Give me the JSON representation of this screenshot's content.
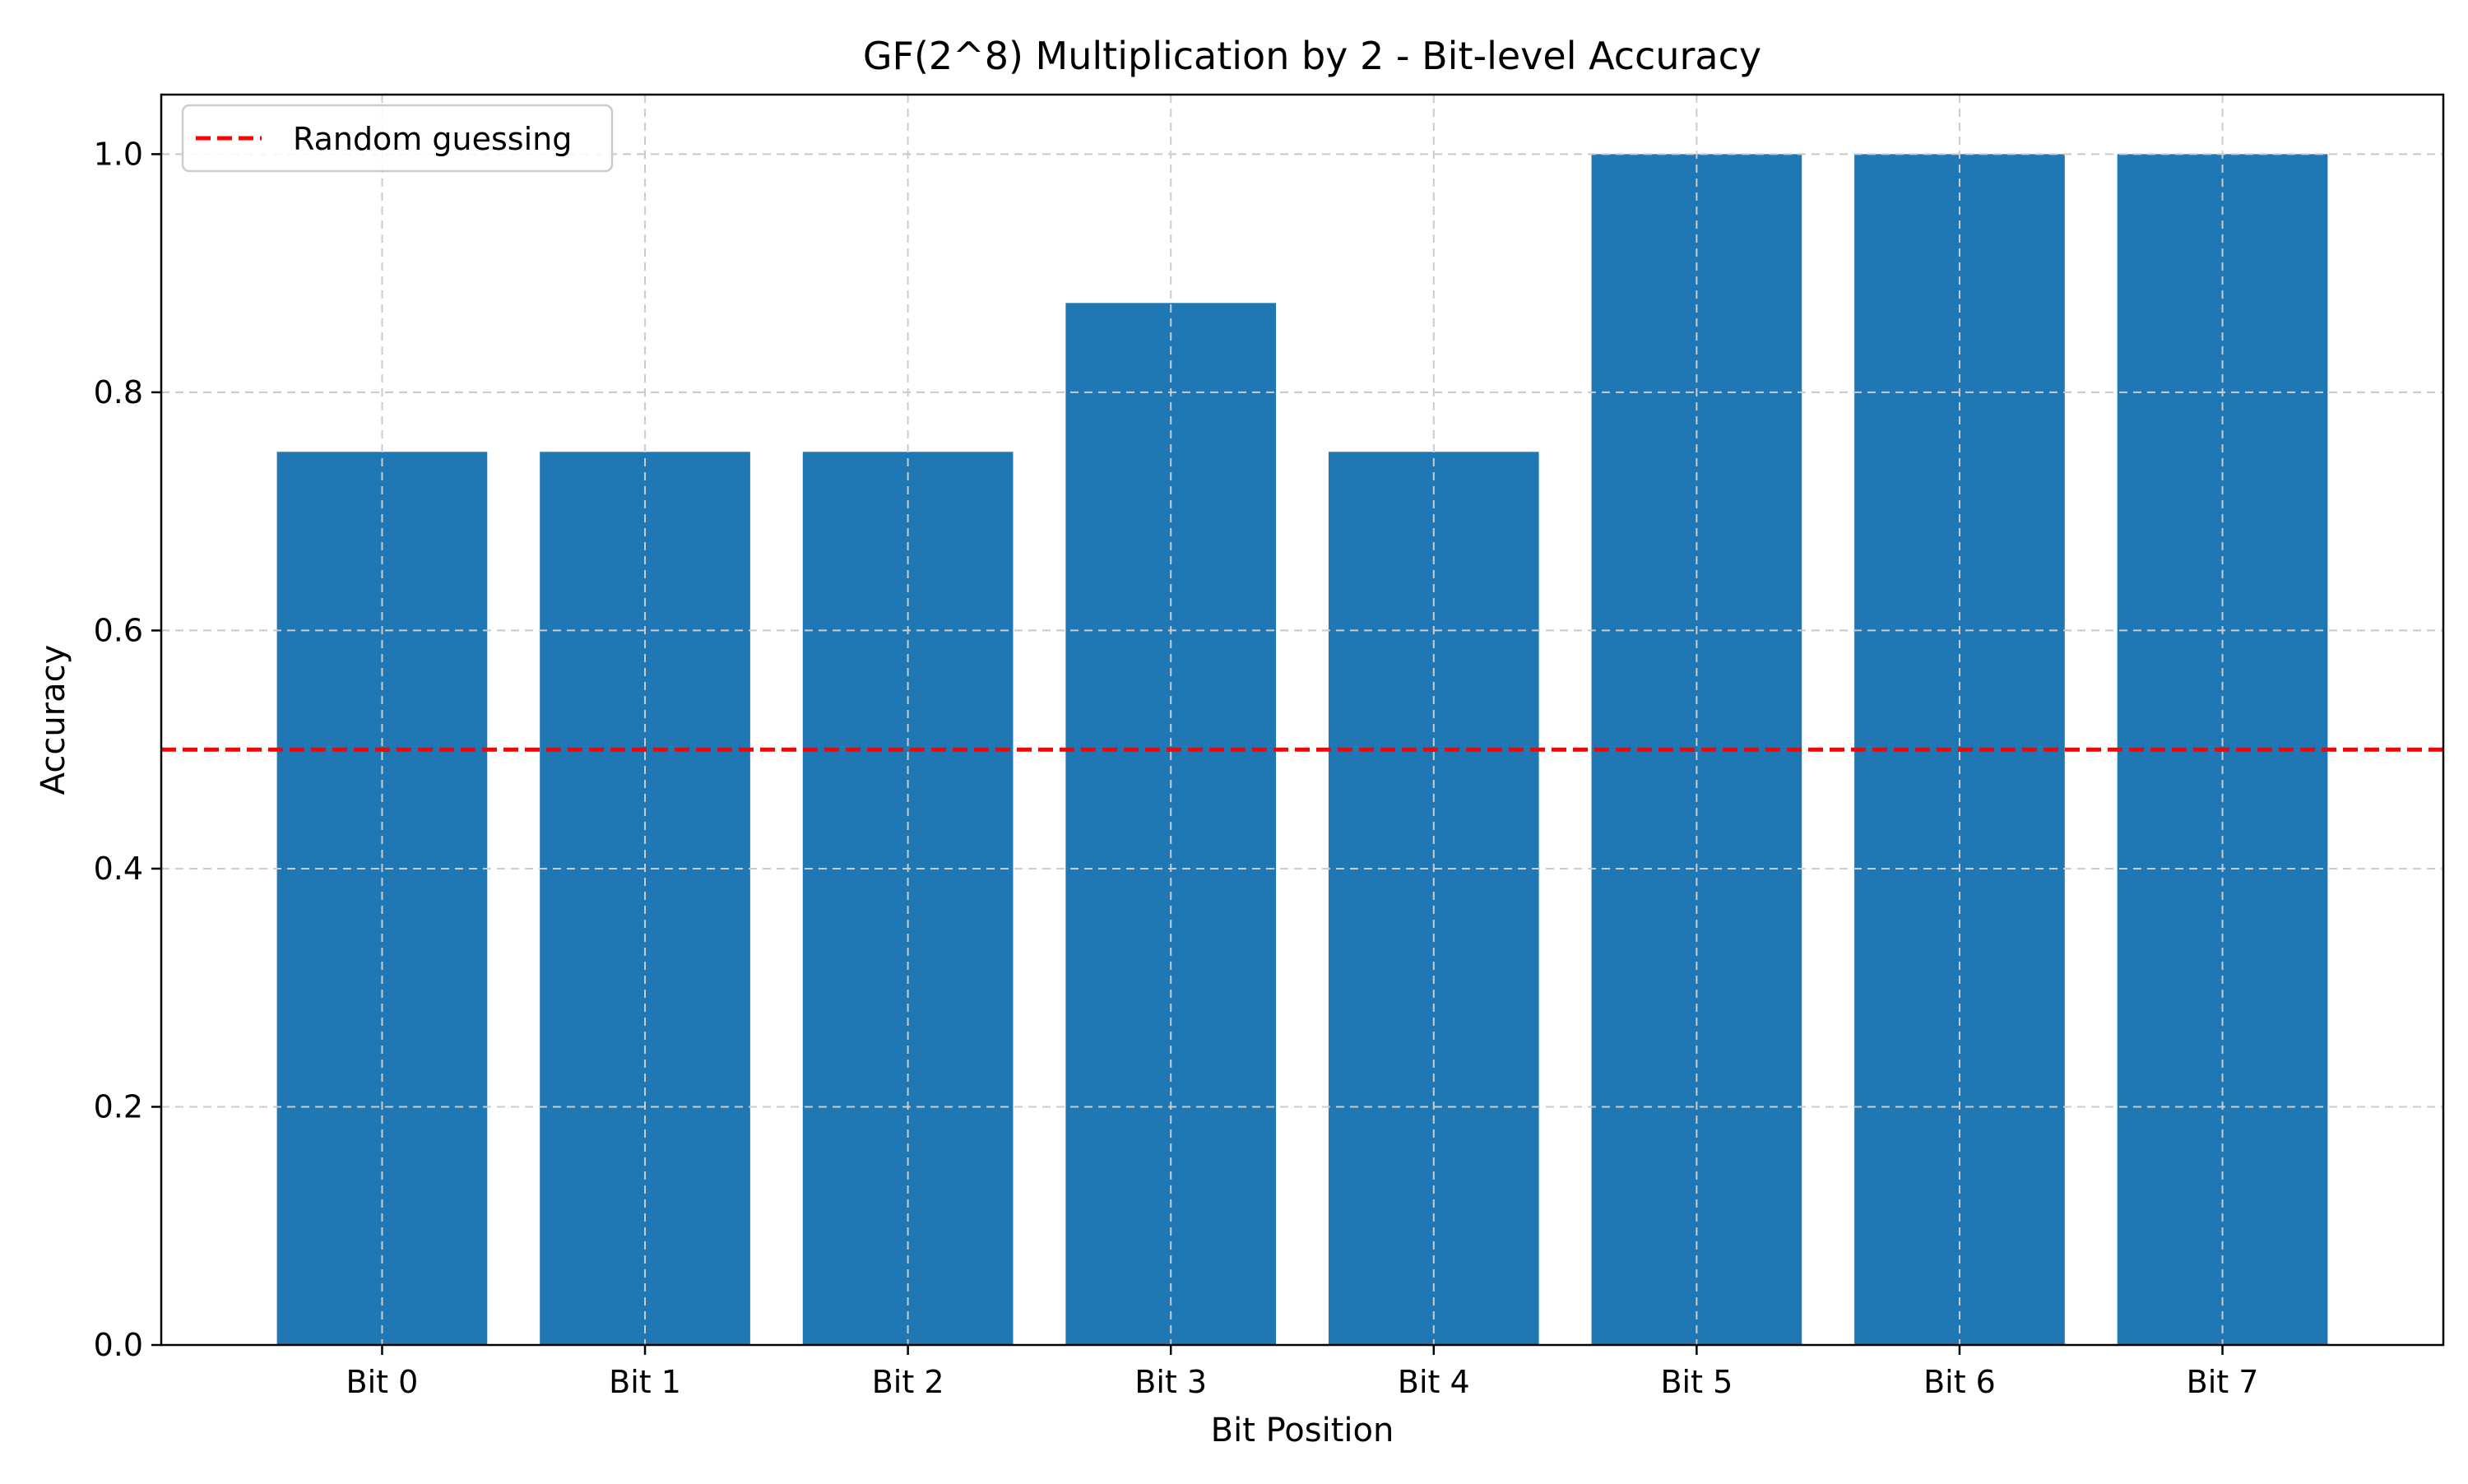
{
  "chart_data": {
    "type": "bar",
    "title": "GF(2^8) Multiplication by 2 - Bit-level Accuracy",
    "xlabel": "Bit Position",
    "ylabel": "Accuracy",
    "categories": [
      "Bit 0",
      "Bit 1",
      "Bit 2",
      "Bit 3",
      "Bit 4",
      "Bit 5",
      "Bit 6",
      "Bit 7"
    ],
    "series": [
      {
        "values": [
          0.75,
          0.75,
          0.75,
          0.875,
          0.75,
          1.0,
          1.0,
          1.0
        ],
        "color": "#1f77b4"
      }
    ],
    "reference_line": {
      "label": "Random guessing",
      "y": 0.5,
      "color": "#ff0000",
      "style": "dashed"
    },
    "ylim": [
      0,
      1.05
    ],
    "yticks": [
      0.0,
      0.2,
      0.4,
      0.6,
      0.8,
      1.0
    ],
    "ytick_labels": [
      "0.0",
      "0.2",
      "0.4",
      "0.6",
      "0.8",
      "1.0"
    ],
    "grid": true,
    "grid_color": "#cccccc",
    "legend_position": "top-left"
  }
}
